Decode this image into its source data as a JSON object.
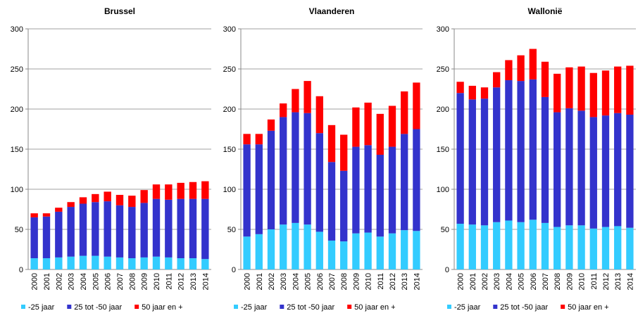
{
  "chart_data": [
    {
      "type": "bar",
      "stacked": true,
      "title": "Brussel",
      "categories": [
        "2000",
        "2001",
        "2002",
        "2003",
        "2004",
        "2005",
        "2006",
        "2007",
        "2008",
        "2009",
        "2010",
        "2011",
        "2012",
        "2013",
        "2014"
      ],
      "series": [
        {
          "name": "-25 jaar",
          "color": "#33ccff",
          "values": [
            14,
            14,
            15,
            16,
            17,
            17,
            16,
            15,
            14,
            15,
            16,
            15,
            14,
            14,
            13
          ]
        },
        {
          "name": "25 tot -50 jaar",
          "color": "#3333cc",
          "values": [
            51,
            52,
            57,
            62,
            65,
            67,
            69,
            65,
            64,
            68,
            72,
            72,
            74,
            74,
            75
          ]
        },
        {
          "name": "50 jaar en +",
          "color": "#ff0000",
          "values": [
            5,
            4,
            5,
            6,
            8,
            10,
            12,
            13,
            14,
            16,
            18,
            19,
            20,
            21,
            22
          ]
        }
      ],
      "ylim": [
        0,
        300
      ],
      "yticks": [
        0,
        50,
        100,
        150,
        200,
        250,
        300
      ],
      "grid": true
    },
    {
      "type": "bar",
      "stacked": true,
      "title": "Vlaanderen",
      "categories": [
        "2000",
        "2001",
        "2002",
        "2003",
        "2004",
        "2005",
        "2006",
        "2007",
        "2008",
        "2009",
        "2010",
        "2011",
        "2012",
        "2013",
        "2014"
      ],
      "series": [
        {
          "name": "-25 jaar",
          "color": "#33ccff",
          "values": [
            41,
            44,
            50,
            56,
            58,
            56,
            47,
            36,
            35,
            45,
            46,
            41,
            45,
            49,
            48
          ]
        },
        {
          "name": "25 tot -50 jaar",
          "color": "#3333cc",
          "values": [
            115,
            112,
            123,
            134,
            138,
            139,
            123,
            98,
            88,
            108,
            109,
            102,
            108,
            120,
            127
          ]
        },
        {
          "name": "50 jaar en +",
          "color": "#ff0000",
          "values": [
            13,
            13,
            14,
            17,
            29,
            40,
            46,
            46,
            45,
            49,
            53,
            51,
            51,
            53,
            58
          ]
        }
      ],
      "ylim": [
        0,
        300
      ],
      "yticks": [
        0,
        50,
        100,
        150,
        200,
        250,
        300
      ],
      "grid": true
    },
    {
      "type": "bar",
      "stacked": true,
      "title": "Wallonië",
      "categories": [
        "2000",
        "2001",
        "2002",
        "2003",
        "2004",
        "2005",
        "2006",
        "2007",
        "2008",
        "2009",
        "2010",
        "2011",
        "2012",
        "2013",
        "2014"
      ],
      "series": [
        {
          "name": "-25 jaar",
          "color": "#33ccff",
          "values": [
            57,
            56,
            55,
            59,
            61,
            59,
            62,
            58,
            53,
            55,
            55,
            51,
            53,
            54,
            52
          ]
        },
        {
          "name": "25 tot -50 jaar",
          "color": "#3333cc",
          "values": [
            163,
            156,
            158,
            168,
            175,
            176,
            175,
            157,
            143,
            146,
            143,
            139,
            139,
            141,
            141
          ]
        },
        {
          "name": "50 jaar en +",
          "color": "#ff0000",
          "values": [
            14,
            17,
            14,
            19,
            25,
            32,
            38,
            44,
            48,
            51,
            55,
            55,
            56,
            58,
            61
          ]
        }
      ],
      "ylim": [
        0,
        300
      ],
      "yticks": [
        0,
        50,
        100,
        150,
        200,
        250,
        300
      ],
      "grid": true
    }
  ]
}
